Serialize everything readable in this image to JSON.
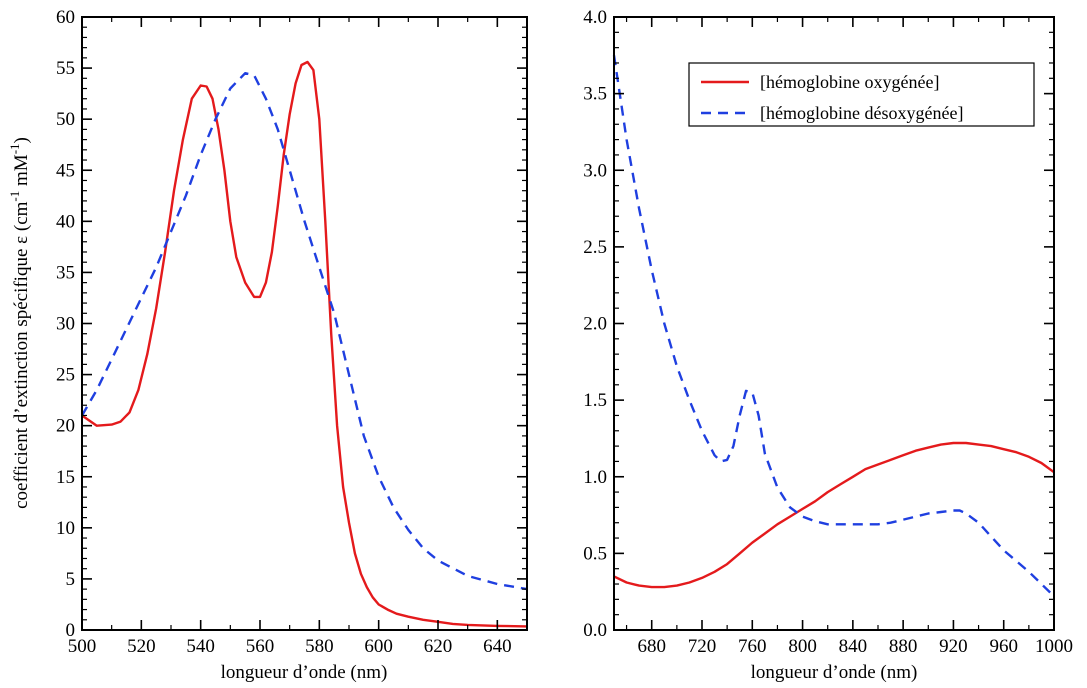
{
  "chart_data": [
    {
      "type": "line",
      "xlabel": "longueur d’onde (nm)",
      "ylabel": {
        "main": "coefficient d’extinction spécifique ε (cm",
        "sup1": "-1",
        "mid": " mM",
        "sup2": "-1",
        "end": ")"
      },
      "xlim": [
        500,
        650
      ],
      "ylim": [
        0,
        60
      ],
      "xticks": [
        500,
        520,
        540,
        560,
        580,
        600,
        620,
        640
      ],
      "yticks": [
        0,
        5,
        10,
        15,
        20,
        25,
        30,
        35,
        40,
        45,
        50,
        55,
        60
      ],
      "series": [
        {
          "color": "#e41a1c",
          "dash": "solid",
          "x": [
            500,
            505,
            510,
            513,
            516,
            519,
            522,
            525,
            528,
            531,
            534,
            537,
            540,
            542,
            544,
            546,
            548,
            550,
            552,
            555,
            558,
            560,
            562,
            564,
            566,
            568,
            570,
            572,
            574,
            576,
            578,
            580,
            582,
            584,
            586,
            588,
            590,
            592,
            594,
            596,
            598,
            600,
            603,
            606,
            610,
            615,
            620,
            625,
            630,
            640,
            650
          ],
          "y": [
            21,
            20.0,
            20.1,
            20.4,
            21.3,
            23.5,
            27,
            31.5,
            37,
            43,
            48,
            52,
            53.3,
            53.2,
            52,
            49,
            45,
            40,
            36.5,
            34,
            32.6,
            32.6,
            34,
            37,
            41.5,
            46.5,
            50.5,
            53.5,
            55.3,
            55.6,
            54.8,
            50,
            40,
            29,
            20,
            14,
            10.5,
            7.5,
            5.5,
            4.2,
            3.2,
            2.5,
            2,
            1.6,
            1.3,
            1.0,
            0.8,
            0.6,
            0.5,
            0.4,
            0.35
          ]
        },
        {
          "color": "#1f3fe0",
          "dash": "dashed",
          "x": [
            500,
            505,
            510,
            515,
            520,
            525,
            530,
            535,
            540,
            545,
            550,
            555,
            558,
            562,
            566,
            570,
            575,
            580,
            585,
            590,
            595,
            600,
            605,
            610,
            615,
            620,
            630,
            640,
            650
          ],
          "y": [
            21,
            23.5,
            26.5,
            29.5,
            32.5,
            35.5,
            39,
            42.5,
            46.5,
            50,
            53,
            54.5,
            54.3,
            52,
            49,
            45,
            40,
            35.5,
            31,
            25,
            19,
            15,
            12,
            9.8,
            8,
            6.8,
            5.3,
            4.5,
            4.0
          ]
        }
      ]
    },
    {
      "type": "line",
      "xlabel": "longueur d’onde (nm)",
      "xlim": [
        650,
        1000
      ],
      "ylim": [
        0,
        4
      ],
      "xticks": [
        680,
        720,
        760,
        800,
        840,
        880,
        920,
        960,
        1000
      ],
      "yticks": [
        0.0,
        0.5,
        1.0,
        1.5,
        2.0,
        2.5,
        3.0,
        3.5,
        4.0
      ],
      "ytick_labels": [
        "0.0",
        "0.5",
        "1.0",
        "1.5",
        "2.0",
        "2.5",
        "3.0",
        "3.5",
        "4.0"
      ],
      "legend": {
        "placement": "top-right",
        "entries": [
          "[hémoglobine oxygénée]",
          "[hémoglobine désoxygénée]"
        ]
      },
      "series": [
        {
          "name": "[hémoglobine oxygénée]",
          "color": "#e41a1c",
          "dash": "solid",
          "x": [
            650,
            660,
            670,
            680,
            690,
            700,
            710,
            720,
            730,
            740,
            750,
            760,
            770,
            780,
            790,
            800,
            810,
            820,
            830,
            840,
            850,
            860,
            870,
            880,
            890,
            900,
            910,
            920,
            925,
            930,
            940,
            950,
            960,
            970,
            980,
            990,
            1000
          ],
          "y": [
            0.35,
            0.31,
            0.29,
            0.28,
            0.28,
            0.29,
            0.31,
            0.34,
            0.38,
            0.43,
            0.5,
            0.57,
            0.63,
            0.69,
            0.74,
            0.79,
            0.84,
            0.9,
            0.95,
            1.0,
            1.05,
            1.08,
            1.11,
            1.14,
            1.17,
            1.19,
            1.21,
            1.22,
            1.22,
            1.22,
            1.21,
            1.2,
            1.18,
            1.16,
            1.13,
            1.09,
            1.03
          ]
        },
        {
          "name": "[hémoglobine désoxygénée]",
          "color": "#1f3fe0",
          "dash": "dashed",
          "x": [
            650,
            660,
            670,
            680,
            690,
            700,
            710,
            720,
            730,
            735,
            740,
            745,
            750,
            755,
            760,
            765,
            770,
            780,
            790,
            800,
            810,
            820,
            830,
            840,
            850,
            860,
            870,
            880,
            890,
            900,
            910,
            920,
            925,
            930,
            940,
            950,
            960,
            970,
            980,
            990,
            1000
          ],
          "y": [
            3.75,
            3.2,
            2.75,
            2.35,
            2.0,
            1.72,
            1.5,
            1.3,
            1.14,
            1.1,
            1.11,
            1.2,
            1.4,
            1.56,
            1.55,
            1.4,
            1.15,
            0.93,
            0.8,
            0.74,
            0.71,
            0.69,
            0.69,
            0.69,
            0.69,
            0.69,
            0.7,
            0.72,
            0.74,
            0.76,
            0.77,
            0.78,
            0.78,
            0.76,
            0.7,
            0.61,
            0.52,
            0.45,
            0.38,
            0.3,
            0.22
          ]
        }
      ]
    }
  ]
}
